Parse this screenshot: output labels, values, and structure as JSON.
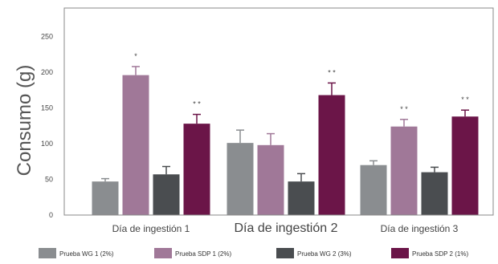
{
  "chart_data": {
    "type": "bar",
    "title": "",
    "xlabel": "",
    "ylabel": "Consumo (g)",
    "ylim": [
      0,
      290
    ],
    "yticks": [
      "0",
      "50",
      "100",
      "150",
      "200",
      "250"
    ],
    "categories": [
      "Día de ingestión 1",
      "Día de ingestión 2",
      "Día de ingestión 3"
    ],
    "series": [
      {
        "name": "Prueba WG 1 (2%)",
        "color": "#8a8d90",
        "values": [
          47,
          101,
          70
        ],
        "errors": [
          4,
          18,
          6
        ]
      },
      {
        "name": "Prueba SDP 1 (2%)",
        "color": "#a07898",
        "values": [
          196,
          98,
          124
        ],
        "errors": [
          12,
          16,
          10
        ]
      },
      {
        "name": "Prueba WG 2 (3%)",
        "color": "#4a4d50",
        "values": [
          57,
          47,
          60
        ],
        "errors": [
          11,
          11,
          7
        ]
      },
      {
        "name": "Prueba SDP 2 (1%)",
        "color": "#6b1548",
        "values": [
          128,
          168,
          138
        ],
        "errors": [
          13,
          17,
          9
        ]
      }
    ],
    "annotations": [
      {
        "category": 0,
        "series": 1,
        "text": "*"
      },
      {
        "category": 0,
        "series": 3,
        "text": "* *"
      },
      {
        "category": 1,
        "series": 3,
        "text": "* *"
      },
      {
        "category": 2,
        "series": 1,
        "text": "* *"
      },
      {
        "category": 2,
        "series": 3,
        "text": "* *"
      }
    ],
    "legend_position": "bottom",
    "grid": false
  }
}
